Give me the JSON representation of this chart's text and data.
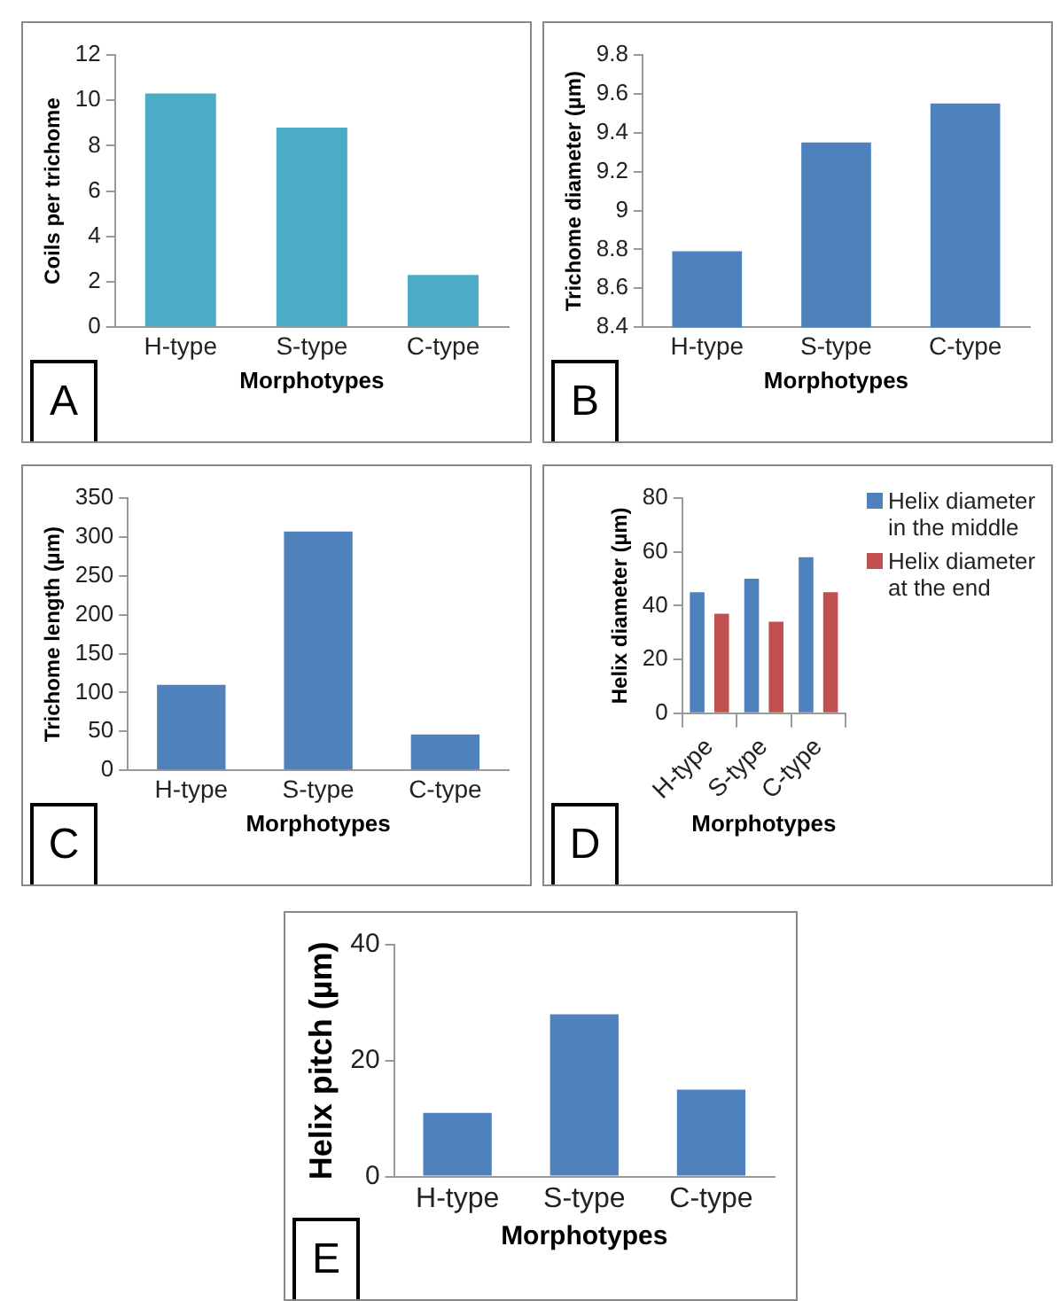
{
  "chart_data": [
    {
      "type": "bar",
      "categories": [
        "H-type",
        "S-type",
        "C-type"
      ],
      "values": [
        10.3,
        8.8,
        2.3
      ],
      "color": "#4bacc6",
      "ylabel": "Coils per trichome",
      "xlabel": "Morphotypes",
      "ylim": [
        0,
        12
      ],
      "yticks": [
        0,
        2,
        4,
        6,
        8,
        10,
        12
      ],
      "grid": false,
      "legend": false,
      "annotations": [
        "A"
      ]
    },
    {
      "type": "bar",
      "categories": [
        "H-type",
        "S-type",
        "C-type"
      ],
      "values": [
        8.79,
        9.35,
        9.55
      ],
      "color": "#4f81bd",
      "ylabel": "Trichome diameter (µm)",
      "xlabel": "Morphotypes",
      "ylim": [
        8.4,
        9.8
      ],
      "yticks": [
        8.4,
        8.6,
        8.8,
        9,
        9.2,
        9.4,
        9.6,
        9.8
      ],
      "grid": false,
      "legend": false,
      "annotations": [
        "B"
      ]
    },
    {
      "type": "bar",
      "categories": [
        "H-type",
        "S-type",
        "C-type"
      ],
      "values": [
        110,
        307,
        46
      ],
      "color": "#4f81bd",
      "ylabel": "Trichome length (µm)",
      "xlabel": "Morphotypes",
      "ylim": [
        0,
        350
      ],
      "yticks": [
        0,
        50,
        100,
        150,
        200,
        250,
        300,
        350
      ],
      "grid": false,
      "legend": false,
      "annotations": [
        "C"
      ]
    },
    {
      "type": "bar",
      "categories": [
        "H-type",
        "S-type",
        "C-type"
      ],
      "series": [
        {
          "name": "Helix diameter in the middle",
          "color": "#4f81bd",
          "values": [
            45,
            50,
            58
          ]
        },
        {
          "name": "Helix diameter at the end",
          "color": "#c0504d",
          "values": [
            37,
            34,
            45
          ]
        }
      ],
      "ylabel": "Helix diameter (µm)",
      "xlabel": "Morphotypes",
      "ylim": [
        0,
        80
      ],
      "yticks": [
        0,
        20,
        40,
        60,
        80
      ],
      "grid": false,
      "legend": "right",
      "annotations": [
        "D"
      ]
    },
    {
      "type": "bar",
      "categories": [
        "H-type",
        "S-type",
        "C-type"
      ],
      "values": [
        11,
        28,
        15
      ],
      "color": "#4f81bd",
      "ylabel": "Helix pitch (µm)",
      "xlabel": "Morphotypes",
      "ylim": [
        0,
        40
      ],
      "yticks": [
        0,
        20,
        40
      ],
      "grid": false,
      "legend": false,
      "annotations": [
        "E"
      ]
    }
  ]
}
